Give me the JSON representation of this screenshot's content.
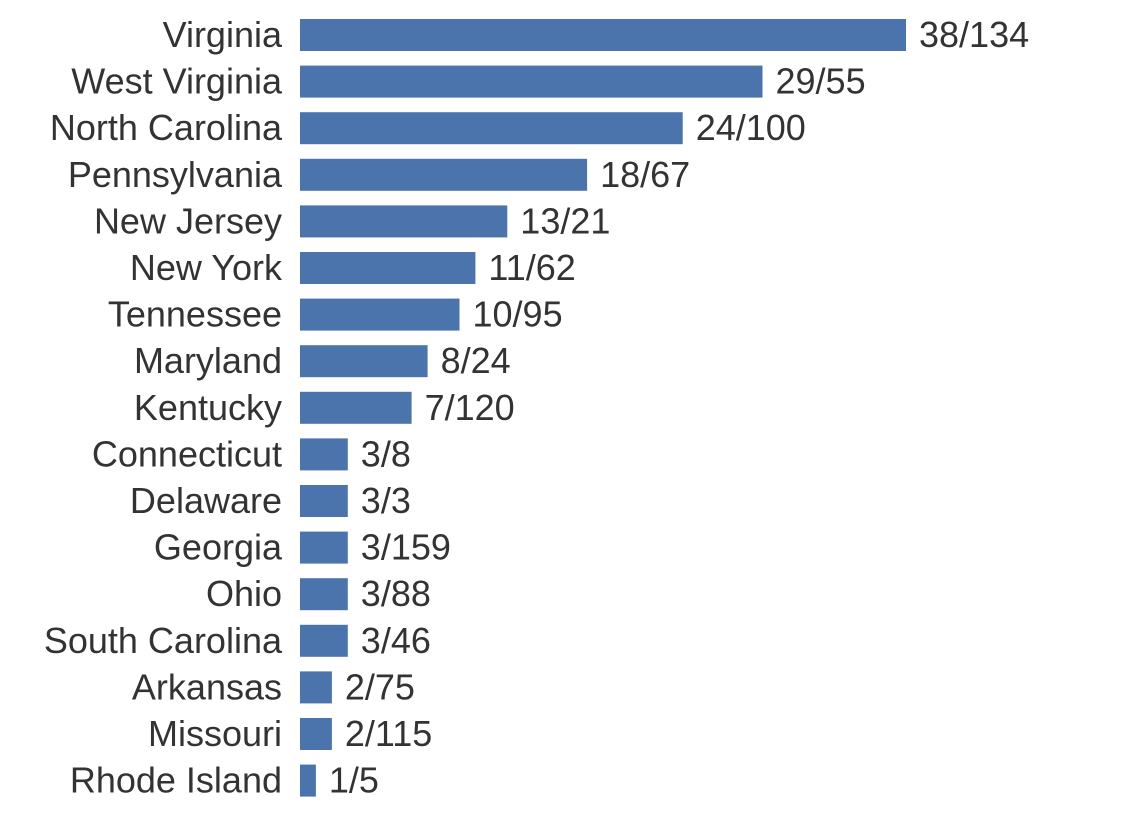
{
  "colors": {
    "bar": "#4a74ab",
    "text": "#333333",
    "background": "#ffffff"
  },
  "chart_data": {
    "type": "bar",
    "orientation": "horizontal",
    "title": "",
    "xlabel": "",
    "ylabel": "",
    "grid": false,
    "axes_visible": false,
    "categories": [
      "Virginia",
      "West Virginia",
      "North Carolina",
      "Pennsylvania",
      "New Jersey",
      "New York",
      "Tennessee",
      "Maryland",
      "Kentucky",
      "Connecticut",
      "Delaware",
      "Georgia",
      "Ohio",
      "South Carolina",
      "Arkansas",
      "Missouri",
      "Rhode Island"
    ],
    "values": [
      38,
      29,
      24,
      18,
      13,
      11,
      10,
      8,
      7,
      3,
      3,
      3,
      3,
      3,
      2,
      2,
      1
    ],
    "data_labels": [
      "38/134",
      "29/55",
      "24/100",
      "18/67",
      "13/21",
      "11/62",
      "10/95",
      "8/24",
      "7/120",
      "3/8",
      "3/3",
      "3/159",
      "3/88",
      "3/46",
      "2/75",
      "2/115",
      "1/5"
    ],
    "xlim": [
      0,
      38
    ]
  }
}
